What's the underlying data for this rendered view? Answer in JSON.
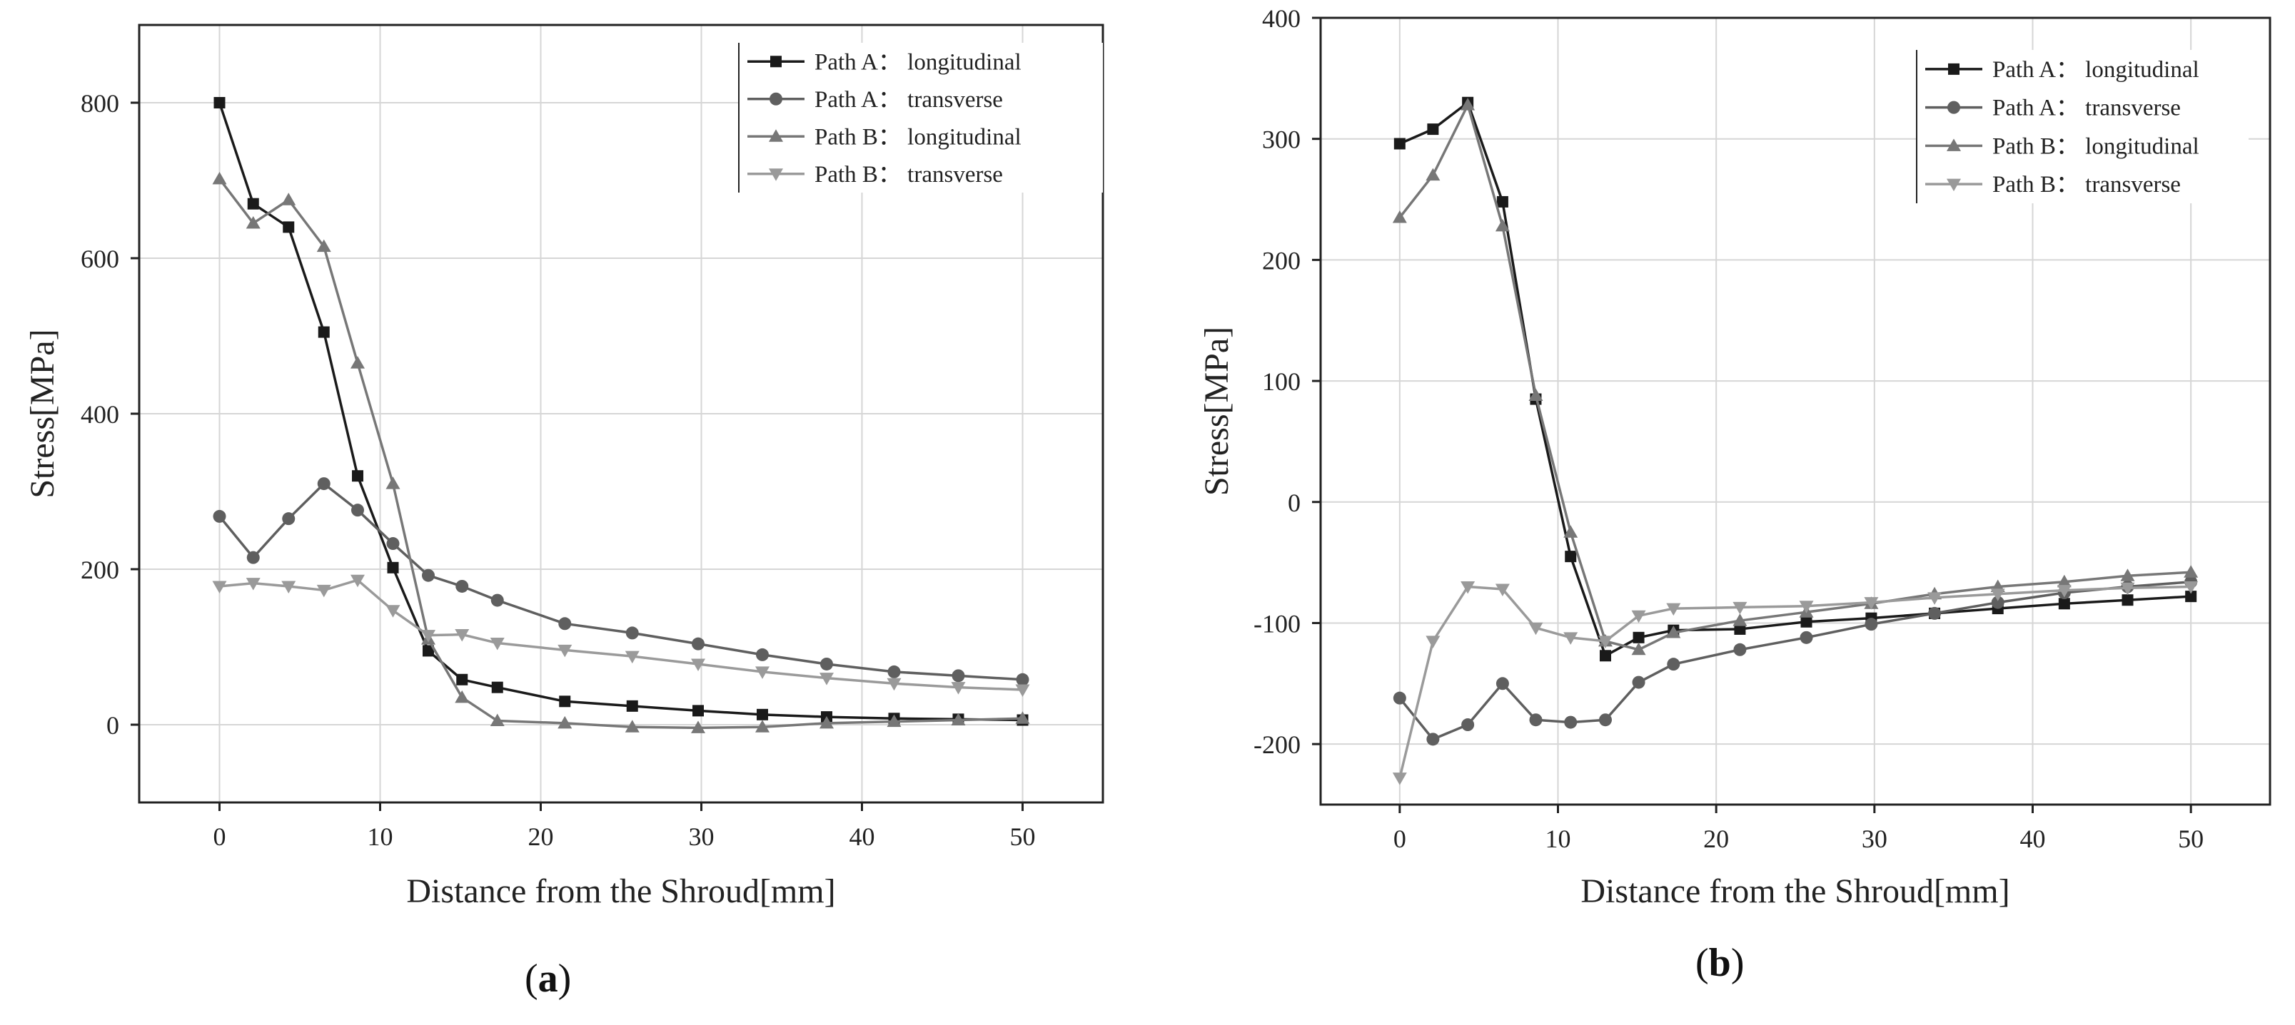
{
  "chart_data": [
    {
      "type": "line",
      "panel_label": "a",
      "caption": {
        "open": "(",
        "letter": "a",
        "close": ")"
      },
      "xlabel": "Distance from the Shroud[mm]",
      "ylabel": "Stress[MPa]",
      "xlim": [
        -5,
        55
      ],
      "ylim": [
        -100,
        900
      ],
      "xticks": [
        0,
        10,
        20,
        30,
        40,
        50
      ],
      "yticks": [
        0,
        200,
        400,
        600,
        800
      ],
      "grid": true,
      "legend_position": "top-right",
      "series": [
        {
          "name": "Path A： longitudinal",
          "marker": "square",
          "color": "#1a1a1a",
          "x": [
            0,
            2.1,
            4.3,
            6.5,
            8.6,
            10.8,
            13,
            15.1,
            17.3,
            21.5,
            25.7,
            29.8,
            33.8,
            37.8,
            42,
            46,
            50
          ],
          "y": [
            800,
            670,
            640,
            505,
            320,
            202,
            95,
            58,
            48,
            30,
            24,
            18,
            13,
            10,
            8,
            7,
            6
          ]
        },
        {
          "name": "Path A： transverse",
          "marker": "circle",
          "color": "#5f5f5f",
          "x": [
            0,
            2.1,
            4.3,
            6.5,
            8.6,
            10.8,
            13,
            15.1,
            17.3,
            21.5,
            25.7,
            29.8,
            33.8,
            37.8,
            42,
            46,
            50
          ],
          "y": [
            268,
            215,
            265,
            310,
            276,
            233,
            192,
            178,
            160,
            130,
            118,
            104,
            90,
            78,
            68,
            63,
            58
          ]
        },
        {
          "name": "Path B： longitudinal",
          "marker": "triangle-up",
          "color": "#777777",
          "x": [
            0,
            2.1,
            4.3,
            6.5,
            8.6,
            10.8,
            13,
            15.1,
            17.3,
            21.5,
            25.7,
            29.8,
            33.8,
            37.8,
            42,
            46,
            50
          ],
          "y": [
            702,
            645,
            675,
            615,
            465,
            310,
            110,
            35,
            5,
            2,
            -3,
            -4,
            -3,
            2,
            4,
            6,
            8
          ]
        },
        {
          "name": "Path B： transverse",
          "marker": "triangle-down",
          "color": "#9a9a9a",
          "x": [
            0,
            2.1,
            4.3,
            6.5,
            8.6,
            10.8,
            13,
            15.1,
            17.3,
            21.5,
            25.7,
            29.8,
            33.8,
            37.8,
            42,
            46,
            50
          ],
          "y": [
            178,
            182,
            178,
            173,
            186,
            147,
            115,
            116,
            105,
            96,
            88,
            78,
            68,
            60,
            53,
            48,
            45
          ]
        }
      ]
    },
    {
      "type": "line",
      "panel_label": "b",
      "caption": {
        "open": "(",
        "letter": "b",
        "close": ")"
      },
      "xlabel": "Distance from the Shroud[mm]",
      "ylabel": "Stress[MPa]",
      "xlim": [
        -5,
        55
      ],
      "ylim": [
        -250,
        400
      ],
      "xticks": [
        0,
        10,
        20,
        30,
        40,
        50
      ],
      "yticks": [
        -200,
        -100,
        0,
        100,
        200,
        300,
        400
      ],
      "grid": true,
      "legend_position": "top-right",
      "series": [
        {
          "name": "Path A： longitudinal",
          "marker": "square",
          "color": "#1a1a1a",
          "x": [
            0,
            2.1,
            4.3,
            6.5,
            8.6,
            10.8,
            13,
            15.1,
            17.3,
            21.5,
            25.7,
            29.8,
            33.8,
            37.8,
            42,
            46,
            50
          ],
          "y": [
            296,
            308,
            330,
            248,
            85,
            -45,
            -127,
            -112,
            -106,
            -105,
            -99,
            -96,
            -92,
            -88,
            -84,
            -81,
            -78
          ]
        },
        {
          "name": "Path A： transverse",
          "marker": "circle",
          "color": "#5f5f5f",
          "x": [
            0,
            2.1,
            4.3,
            6.5,
            8.6,
            10.8,
            13,
            15.1,
            17.3,
            21.5,
            25.7,
            29.8,
            33.8,
            37.8,
            42,
            46,
            50
          ],
          "y": [
            -162,
            -196,
            -184,
            -150,
            -180,
            -182,
            -180,
            -149,
            -134,
            -122,
            -112,
            -101,
            -92,
            -83,
            -75,
            -70,
            -66
          ]
        },
        {
          "name": "Path B： longitudinal",
          "marker": "triangle-up",
          "color": "#777777",
          "x": [
            0,
            2.1,
            4.3,
            6.5,
            8.6,
            10.8,
            13,
            15.1,
            17.3,
            21.5,
            25.7,
            29.8,
            33.8,
            37.8,
            42,
            46,
            50
          ],
          "y": [
            235,
            270,
            328,
            228,
            88,
            -25,
            -115,
            -122,
            -108,
            -98,
            -91,
            -84,
            -76,
            -70,
            -66,
            -61,
            -58
          ]
        },
        {
          "name": "Path B： transverse",
          "marker": "triangle-down",
          "color": "#9a9a9a",
          "x": [
            0,
            2.1,
            4.3,
            6.5,
            8.6,
            10.8,
            13,
            15.1,
            17.3,
            21.5,
            25.7,
            29.8,
            33.8,
            37.8,
            42,
            46,
            50
          ],
          "y": [
            -228,
            -115,
            -70,
            -72,
            -104,
            -112,
            -115,
            -94,
            -88,
            -87,
            -86,
            -83,
            -79,
            -76,
            -73,
            -71,
            -70
          ]
        }
      ]
    }
  ]
}
